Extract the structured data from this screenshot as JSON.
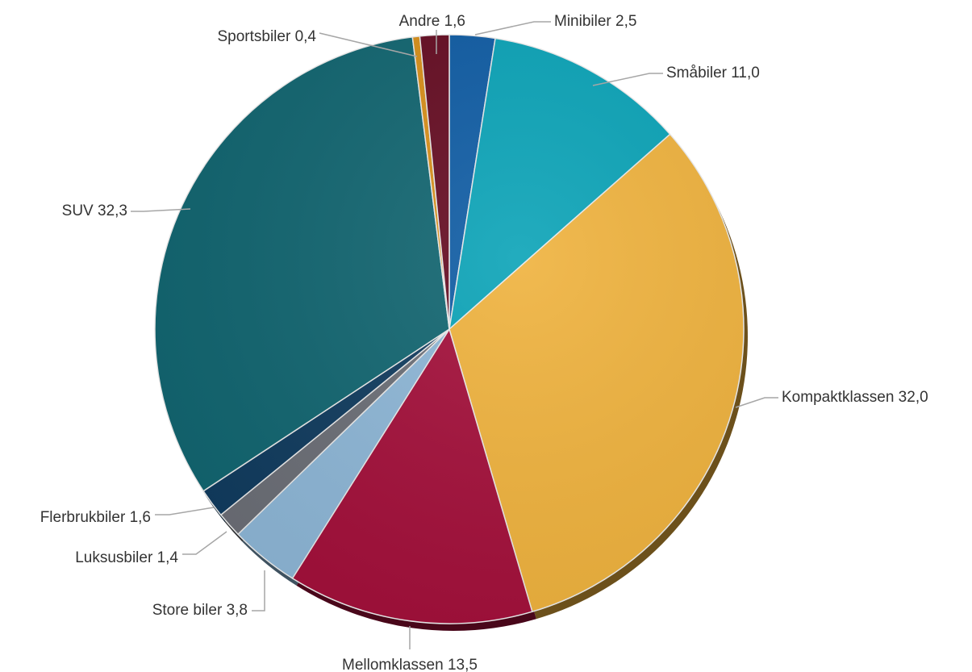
{
  "chart_data": {
    "type": "pie",
    "start": "top",
    "direction": "clockwise",
    "legend": "none",
    "slices": [
      {
        "label": "Minibiler",
        "value_text": "2,5",
        "value": 2.5,
        "color": "#0f5ca4"
      },
      {
        "label": "Småbiler",
        "value_text": "11,0",
        "value": 11.0,
        "color": "#0aa3b7"
      },
      {
        "label": "Kompaktklassen",
        "value_text": "32,0",
        "value": 32.0,
        "color": "#efb23d"
      },
      {
        "label": "Mellomklassen",
        "value_text": "13,5",
        "value": 13.5,
        "color": "#a30f3a"
      },
      {
        "label": "Store biler",
        "value_text": "3,8",
        "value": 3.8,
        "color": "#8db6d6"
      },
      {
        "label": "Luksusbiler",
        "value_text": "1,4",
        "value": 1.4,
        "color": "#6b6e76"
      },
      {
        "label": "Flerbrukbiler",
        "value_text": "1,6",
        "value": 1.6,
        "color": "#103b5e"
      },
      {
        "label": "SUV",
        "value_text": "32,3",
        "value": 32.3,
        "color": "#116570"
      },
      {
        "label": "Sportsbiler",
        "value_text": "0,4",
        "value": 0.4,
        "color": "#d88f19"
      },
      {
        "label": "Andre",
        "value_text": "1,6",
        "value": 1.6,
        "color": "#650c22"
      }
    ]
  }
}
